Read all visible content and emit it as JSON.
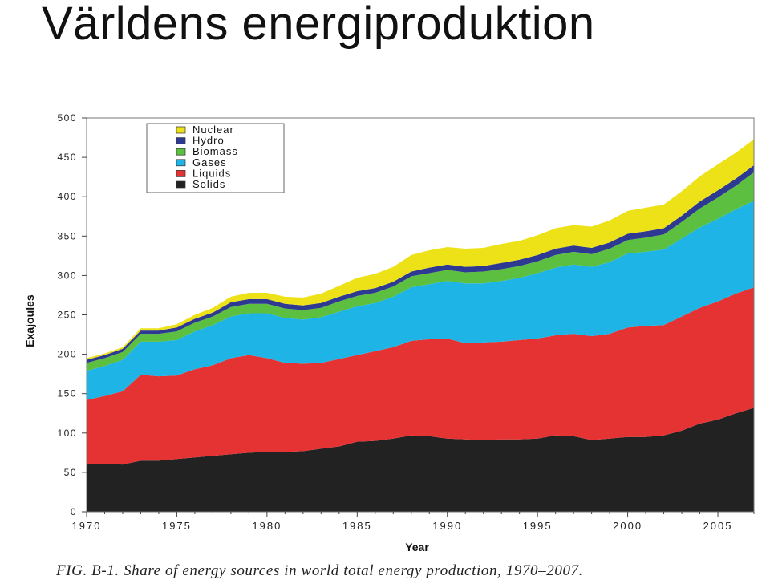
{
  "slide": {
    "title": "Världens energiproduktion",
    "caption": "FIG. B-1. Share of energy sources in world total energy production, 1970–2007."
  },
  "chart_data": {
    "type": "area",
    "stacked": true,
    "xlabel": "Year",
    "ylabel": "Exajoules",
    "ylim": [
      0,
      500
    ],
    "xlim": [
      1970,
      2007
    ],
    "yticks": [
      0,
      50,
      100,
      150,
      200,
      250,
      300,
      350,
      400,
      450,
      500
    ],
    "xticks": [
      1970,
      1975,
      1980,
      1985,
      1990,
      1995,
      2000,
      2005
    ],
    "grid": false,
    "legend_position": "top-left",
    "x": [
      1970,
      1971,
      1972,
      1973,
      1974,
      1975,
      1976,
      1977,
      1978,
      1979,
      1980,
      1981,
      1982,
      1983,
      1984,
      1985,
      1986,
      1987,
      1988,
      1989,
      1990,
      1991,
      1992,
      1993,
      1994,
      1995,
      1996,
      1997,
      1998,
      1999,
      2000,
      2001,
      2002,
      2003,
      2004,
      2005,
      2006,
      2007
    ],
    "series": [
      {
        "name": "Solids",
        "color": "#222222",
        "values": [
          60,
          61,
          60,
          65,
          65,
          67,
          69,
          71,
          73,
          75,
          76,
          76,
          77,
          80,
          83,
          89,
          90,
          93,
          97,
          96,
          93,
          92,
          91,
          92,
          92,
          93,
          97,
          96,
          91,
          93,
          95,
          95,
          97,
          103,
          112,
          117,
          125,
          132
        ]
      },
      {
        "name": "Liquids",
        "color": "#e53333",
        "values": [
          82,
          86,
          93,
          109,
          107,
          106,
          112,
          115,
          122,
          124,
          119,
          113,
          111,
          109,
          111,
          110,
          114,
          116,
          120,
          123,
          127,
          122,
          124,
          124,
          126,
          127,
          127,
          130,
          132,
          133,
          139,
          141,
          140,
          145,
          147,
          150,
          152,
          153
        ]
      },
      {
        "name": "Gases",
        "color": "#1fb4e6",
        "values": [
          37,
          38,
          40,
          42,
          44,
          45,
          48,
          51,
          53,
          53,
          57,
          57,
          56,
          58,
          60,
          62,
          61,
          64,
          68,
          70,
          73,
          76,
          75,
          77,
          79,
          83,
          86,
          88,
          88,
          91,
          94,
          94,
          96,
          99,
          102,
          105,
          107,
          110
        ]
      },
      {
        "name": "Biomass",
        "color": "#5cbf3f",
        "values": [
          10,
          10,
          10,
          10,
          10,
          11,
          11,
          11,
          12,
          12,
          12,
          12,
          12,
          12,
          13,
          13,
          13,
          13,
          14,
          14,
          14,
          14,
          15,
          15,
          15,
          15,
          16,
          16,
          16,
          17,
          17,
          18,
          19,
          21,
          24,
          27,
          30,
          36
        ]
      },
      {
        "name": "Hydro",
        "color": "#2e3a91",
        "values": [
          4,
          4,
          4,
          4,
          4,
          5,
          5,
          5,
          6,
          6,
          6,
          6,
          6,
          6,
          6,
          6,
          6,
          6,
          6,
          7,
          7,
          7,
          7,
          8,
          8,
          8,
          8,
          8,
          8,
          8,
          8,
          8,
          8,
          8,
          9,
          9,
          9,
          9
        ]
      },
      {
        "name": "Nuclear",
        "color": "#ede218",
        "values": [
          2,
          2,
          2,
          3,
          3,
          4,
          5,
          6,
          7,
          8,
          8,
          9,
          10,
          12,
          14,
          17,
          18,
          19,
          21,
          22,
          22,
          23,
          23,
          24,
          24,
          25,
          26,
          26,
          27,
          28,
          29,
          30,
          30,
          31,
          32,
          33,
          33,
          33
        ]
      }
    ]
  }
}
